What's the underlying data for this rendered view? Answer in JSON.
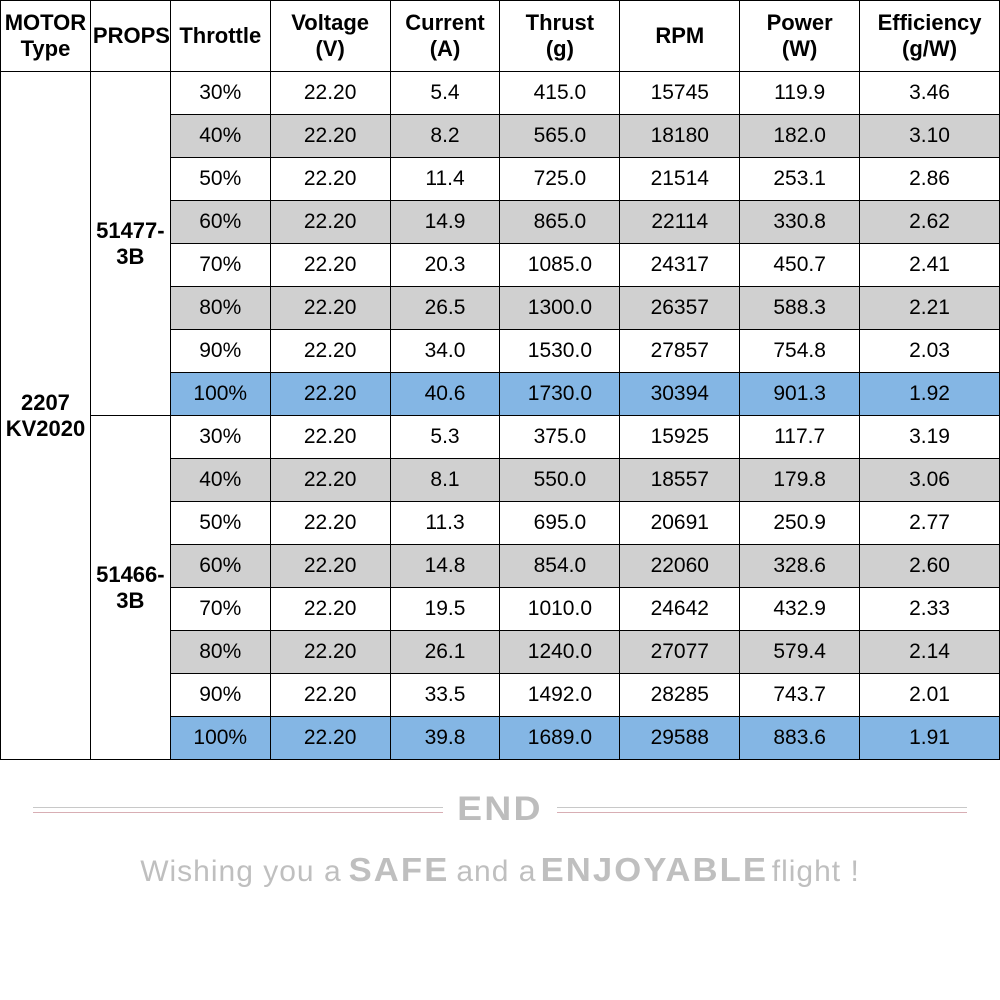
{
  "table": {
    "type": "table",
    "columns": [
      {
        "key": "motor",
        "label": "MOTOR\nType"
      },
      {
        "key": "props",
        "label": "PROPS"
      },
      {
        "key": "throttle",
        "label": "Throttle"
      },
      {
        "key": "voltage",
        "label": "Voltage\n(V)"
      },
      {
        "key": "current",
        "label": "Current\n(A)"
      },
      {
        "key": "thrust",
        "label": "Thrust\n(g)"
      },
      {
        "key": "rpm",
        "label": "RPM"
      },
      {
        "key": "power",
        "label": "Power\n(W)"
      },
      {
        "key": "eff",
        "label": "Efficiency\n(g/W)"
      }
    ],
    "motor_type": "2207\nKV2020",
    "groups": [
      {
        "props": "51477-\n3B",
        "rows": [
          {
            "throttle": "30%",
            "voltage": "22.20",
            "current": "5.4",
            "thrust": "415.0",
            "rpm": "15745",
            "power": "119.9",
            "eff": "3.46",
            "style": "plain"
          },
          {
            "throttle": "40%",
            "voltage": "22.20",
            "current": "8.2",
            "thrust": "565.0",
            "rpm": "18180",
            "power": "182.0",
            "eff": "3.10",
            "style": "shade"
          },
          {
            "throttle": "50%",
            "voltage": "22.20",
            "current": "11.4",
            "thrust": "725.0",
            "rpm": "21514",
            "power": "253.1",
            "eff": "2.86",
            "style": "plain"
          },
          {
            "throttle": "60%",
            "voltage": "22.20",
            "current": "14.9",
            "thrust": "865.0",
            "rpm": "22114",
            "power": "330.8",
            "eff": "2.62",
            "style": "shade"
          },
          {
            "throttle": "70%",
            "voltage": "22.20",
            "current": "20.3",
            "thrust": "1085.0",
            "rpm": "24317",
            "power": "450.7",
            "eff": "2.41",
            "style": "plain"
          },
          {
            "throttle": "80%",
            "voltage": "22.20",
            "current": "26.5",
            "thrust": "1300.0",
            "rpm": "26357",
            "power": "588.3",
            "eff": "2.21",
            "style": "shade"
          },
          {
            "throttle": "90%",
            "voltage": "22.20",
            "current": "34.0",
            "thrust": "1530.0",
            "rpm": "27857",
            "power": "754.8",
            "eff": "2.03",
            "style": "plain"
          },
          {
            "throttle": "100%",
            "voltage": "22.20",
            "current": "40.6",
            "thrust": "1730.0",
            "rpm": "30394",
            "power": "901.3",
            "eff": "1.92",
            "style": "highlight"
          }
        ]
      },
      {
        "props": "51466-\n3B",
        "rows": [
          {
            "throttle": "30%",
            "voltage": "22.20",
            "current": "5.3",
            "thrust": "375.0",
            "rpm": "15925",
            "power": "117.7",
            "eff": "3.19",
            "style": "plain"
          },
          {
            "throttle": "40%",
            "voltage": "22.20",
            "current": "8.1",
            "thrust": "550.0",
            "rpm": "18557",
            "power": "179.8",
            "eff": "3.06",
            "style": "shade"
          },
          {
            "throttle": "50%",
            "voltage": "22.20",
            "current": "11.3",
            "thrust": "695.0",
            "rpm": "20691",
            "power": "250.9",
            "eff": "2.77",
            "style": "plain"
          },
          {
            "throttle": "60%",
            "voltage": "22.20",
            "current": "14.8",
            "thrust": "854.0",
            "rpm": "22060",
            "power": "328.6",
            "eff": "2.60",
            "style": "shade"
          },
          {
            "throttle": "70%",
            "voltage": "22.20",
            "current": "19.5",
            "thrust": "1010.0",
            "rpm": "24642",
            "power": "432.9",
            "eff": "2.33",
            "style": "plain"
          },
          {
            "throttle": "80%",
            "voltage": "22.20",
            "current": "26.1",
            "thrust": "1240.0",
            "rpm": "27077",
            "power": "579.4",
            "eff": "2.14",
            "style": "shade"
          },
          {
            "throttle": "90%",
            "voltage": "22.20",
            "current": "33.5",
            "thrust": "1492.0",
            "rpm": "28285",
            "power": "743.7",
            "eff": "2.01",
            "style": "plain"
          },
          {
            "throttle": "100%",
            "voltage": "22.20",
            "current": "39.8",
            "thrust": "1689.0",
            "rpm": "29588",
            "power": "883.6",
            "eff": "1.91",
            "style": "highlight"
          }
        ]
      }
    ],
    "row_colors": {
      "plain": "#ffffff",
      "shade": "#d0d0d0",
      "highlight": "#84b6e4"
    },
    "border_color": "#000000",
    "header_fontsize": 22,
    "cell_fontsize": 21
  },
  "footer": {
    "end_label": "END",
    "wish_prefix": "Wishing you a ",
    "wish_word1": "SAFE",
    "wish_mid": " and a ",
    "wish_word2": "ENJOYABLE",
    "wish_suffix": " flight !",
    "text_color": "#bfbfbf",
    "line_color_top": "#c8c8c8",
    "line_color_bottom": "#d8aeb4"
  }
}
